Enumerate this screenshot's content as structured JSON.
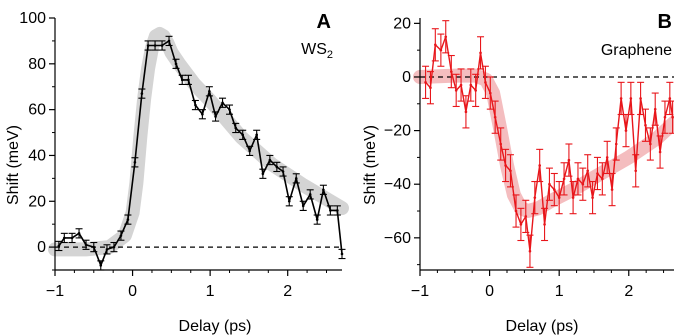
{
  "chart_data": [
    {
      "panel_label": "A",
      "type": "line",
      "subtitle_parts": [
        "WS",
        "2"
      ],
      "xlabel": "Delay (ps)",
      "ylabel": "Shift (meV)",
      "xlim": [
        -1,
        2.7
      ],
      "ylim": [
        -10,
        100
      ],
      "xticks": [
        "-1",
        "0",
        "1",
        "2"
      ],
      "xtick_values": [
        -1,
        0,
        1,
        2
      ],
      "yticks": [
        "0",
        "20",
        "40",
        "60",
        "80",
        "100"
      ],
      "ytick_values": [
        0,
        20,
        40,
        60,
        80,
        100
      ],
      "colors": {
        "data": "#000000",
        "fit": "#cfcfcf"
      },
      "series": [
        {
          "x": [
            -0.95,
            -0.88,
            -0.78,
            -0.69,
            -0.6,
            -0.5,
            -0.41,
            -0.33,
            -0.24,
            -0.15,
            -0.06,
            0.03,
            0.12,
            0.2,
            0.29,
            0.38,
            0.47,
            0.56,
            0.64,
            0.72,
            0.81,
            0.9,
            0.99,
            1.07,
            1.16,
            1.25,
            1.33,
            1.42,
            1.51,
            1.6,
            1.68,
            1.77,
            1.86,
            1.94,
            2.02,
            2.11,
            2.2,
            2.29,
            2.38,
            2.46,
            2.55,
            2.64,
            2.7
          ],
          "y": [
            0.5,
            4,
            4,
            6,
            1,
            0,
            -8,
            -1,
            0,
            5,
            12,
            37,
            67,
            88,
            88,
            88,
            90,
            80,
            73,
            73,
            62,
            58,
            68,
            57,
            63,
            60,
            52,
            49,
            42,
            49,
            32,
            38,
            35,
            33,
            20,
            30,
            18,
            23,
            12,
            25,
            16,
            16,
            -3
          ],
          "err": [
            2,
            2,
            2,
            2,
            2,
            2,
            2,
            2,
            2,
            2,
            2,
            2,
            2,
            2,
            2,
            2,
            2,
            2,
            2,
            2,
            2,
            2,
            2,
            2,
            2,
            2,
            2,
            2,
            2,
            2,
            2,
            2,
            2,
            2,
            2,
            2,
            2,
            2,
            2,
            2,
            2,
            2,
            2
          ]
        }
      ],
      "fit": {
        "x": [
          -1,
          -0.6,
          -0.3,
          -0.1,
          0,
          0.05,
          0.1,
          0.15,
          0.2,
          0.25,
          0.3,
          0.35,
          0.4,
          0.45,
          0.5,
          0.6,
          0.8,
          1.0,
          1.4,
          1.8,
          2.2,
          2.7
        ],
        "y": [
          -1,
          -1,
          0,
          5,
          15,
          28,
          48,
          65,
          78,
          87,
          92,
          93,
          92,
          89,
          85,
          80,
          71,
          64,
          48,
          36,
          27,
          17
        ]
      },
      "reference_line": {
        "y": 0,
        "style": "dashed"
      }
    },
    {
      "panel_label": "B",
      "type": "line",
      "subtitle_parts": [
        "Graphene"
      ],
      "xlabel": "Delay (ps)",
      "ylabel": "Shift (meV)",
      "xlim": [
        -1,
        2.65
      ],
      "ylim": [
        -72,
        22
      ],
      "xticks": [
        "-1",
        "0",
        "1",
        "2"
      ],
      "xtick_values": [
        -1,
        0,
        1,
        2
      ],
      "yticks": [
        "-60",
        "-40",
        "-20",
        "0",
        "20"
      ],
      "ytick_values": [
        -60,
        -40,
        -20,
        0,
        20
      ],
      "colors": {
        "data": "#e8161b",
        "fit": "#f3b6b8"
      },
      "series": [
        {
          "x": [
            -0.92,
            -0.85,
            -0.78,
            -0.7,
            -0.63,
            -0.55,
            -0.48,
            -0.41,
            -0.34,
            -0.27,
            -0.2,
            -0.13,
            -0.06,
            0.01,
            0.08,
            0.16,
            0.23,
            0.3,
            0.38,
            0.45,
            0.52,
            0.58,
            0.65,
            0.72,
            0.79,
            0.86,
            0.93,
            1.0,
            1.07,
            1.14,
            1.2,
            1.27,
            1.34,
            1.41,
            1.48,
            1.55,
            1.62,
            1.69,
            1.76,
            1.82,
            1.89,
            1.96,
            2.03,
            2.1,
            2.17,
            2.24,
            2.31,
            2.38,
            2.45,
            2.52,
            2.59,
            2.63
          ],
          "y": [
            -2,
            -4,
            12,
            10,
            15,
            2,
            -5,
            -3,
            -13,
            -3,
            -5,
            9,
            -2,
            -6,
            -15,
            -25,
            -33,
            -35,
            -50,
            -55,
            -52,
            -65,
            -45,
            -33,
            -55,
            -40,
            -42,
            -45,
            -38,
            -31,
            -45,
            -38,
            -40,
            -35,
            -45,
            -36,
            -38,
            -30,
            -42,
            -25,
            -8,
            -20,
            -8,
            -35,
            -8,
            -18,
            -25,
            -12,
            -28,
            -15,
            -8,
            -15
          ],
          "err": [
            6,
            6,
            6,
            6,
            6,
            6,
            6,
            6,
            6,
            6,
            6,
            6,
            6,
            6,
            6,
            6,
            6,
            6,
            6,
            6,
            6,
            6,
            6,
            6,
            6,
            6,
            6,
            6,
            6,
            6,
            6,
            6,
            6,
            6,
            6,
            6,
            6,
            6,
            6,
            6,
            6,
            6,
            6,
            6,
            6,
            6,
            6,
            6,
            6,
            6,
            6,
            6
          ]
        }
      ],
      "fit": {
        "x": [
          -1,
          -0.5,
          -0.2,
          -0.05,
          0.05,
          0.15,
          0.25,
          0.35,
          0.45,
          0.55,
          0.7,
          0.9,
          1.2,
          1.6,
          2.0,
          2.4,
          2.65
        ],
        "y": [
          0,
          0.5,
          0.5,
          -1,
          -6,
          -19,
          -33,
          -44,
          -49,
          -50,
          -49,
          -46,
          -42,
          -36,
          -30,
          -23,
          -17
        ]
      },
      "reference_line": {
        "y": 0,
        "style": "dashed"
      }
    }
  ]
}
